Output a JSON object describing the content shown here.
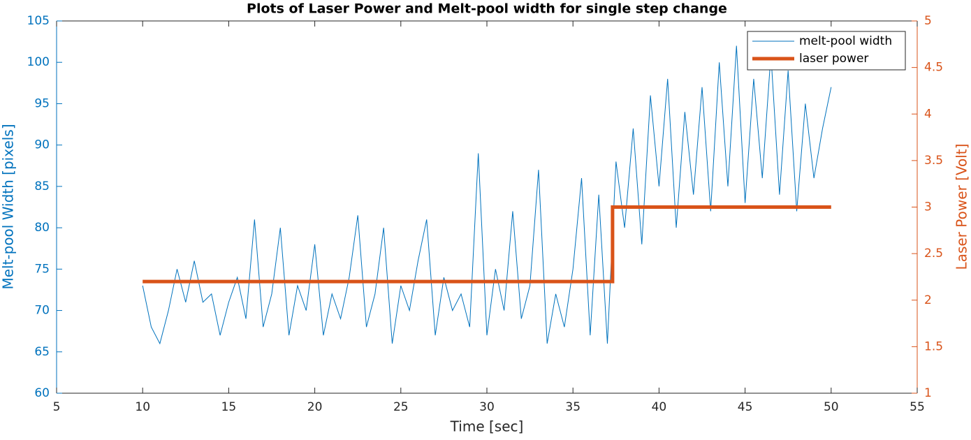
{
  "chart_data": {
    "type": "line",
    "title": "Plots of Laser Power and Melt-pool width for single step change",
    "x_label": "Time [sec]",
    "y_label": "Melt-pool Width [pixels]",
    "y2_label": "Laser Power [Volt]",
    "xlim": [
      5,
      55
    ],
    "xticks": [
      5,
      10,
      15,
      20,
      25,
      30,
      35,
      40,
      45,
      50,
      55
    ],
    "ylim": [
      60,
      105
    ],
    "yticks": [
      60,
      65,
      70,
      75,
      80,
      85,
      90,
      95,
      100,
      105
    ],
    "y_color": "#0072bd",
    "y2lim": [
      1,
      5
    ],
    "y2ticks": [
      1,
      1.5,
      2,
      2.5,
      3,
      3.5,
      4,
      4.5,
      5
    ],
    "y2_color": "#d95319",
    "legend": "northeast",
    "grid": false,
    "series": [
      {
        "name": "melt-pool width",
        "color": "#0072bd",
        "width": 1,
        "x": [
          10,
          10.5,
          11,
          11.5,
          12,
          12.5,
          13,
          13.5,
          14,
          14.5,
          15,
          15.5,
          16,
          16.5,
          17,
          17.5,
          18,
          18.5,
          19,
          19.5,
          20,
          20.5,
          21,
          21.5,
          22,
          22.5,
          23,
          23.5,
          24,
          24.5,
          25,
          25.5,
          26,
          26.5,
          27,
          27.5,
          28,
          28.5,
          29,
          29.5,
          30,
          30.5,
          31,
          31.5,
          32,
          32.5,
          33,
          33.5,
          34,
          34.5,
          35,
          35.5,
          36,
          36.5,
          37,
          37.5,
          38,
          38.5,
          39,
          39.5,
          40,
          40.5,
          41,
          41.5,
          42,
          42.5,
          43,
          43.5,
          44,
          44.5,
          45,
          45.5,
          46,
          46.5,
          47,
          47.5,
          48,
          48.5,
          49,
          49.5,
          50
        ],
        "values": [
          73,
          68,
          66,
          70,
          75,
          71,
          76,
          71,
          72,
          67,
          71,
          74,
          69,
          81,
          68,
          72,
          80,
          67,
          73,
          70,
          78,
          67,
          72,
          69,
          74,
          81.5,
          68,
          72,
          80,
          66,
          73,
          70,
          76,
          81,
          67,
          74,
          70,
          72,
          68,
          89,
          67,
          75,
          70,
          82,
          69,
          73,
          87,
          66,
          72,
          68,
          75,
          86,
          67,
          84,
          66,
          88,
          80,
          92,
          78,
          96,
          85,
          98,
          80,
          94,
          84,
          97,
          82,
          100,
          85,
          102,
          83,
          98,
          86,
          101,
          84,
          99,
          82,
          95,
          86,
          92,
          97
        ]
      },
      {
        "name": "laser power",
        "color": "#d95319",
        "width": 5,
        "axis": "y2",
        "x": [
          10,
          37.3,
          37.3,
          50
        ],
        "values": [
          2.2,
          2.2,
          3,
          3
        ]
      }
    ]
  }
}
